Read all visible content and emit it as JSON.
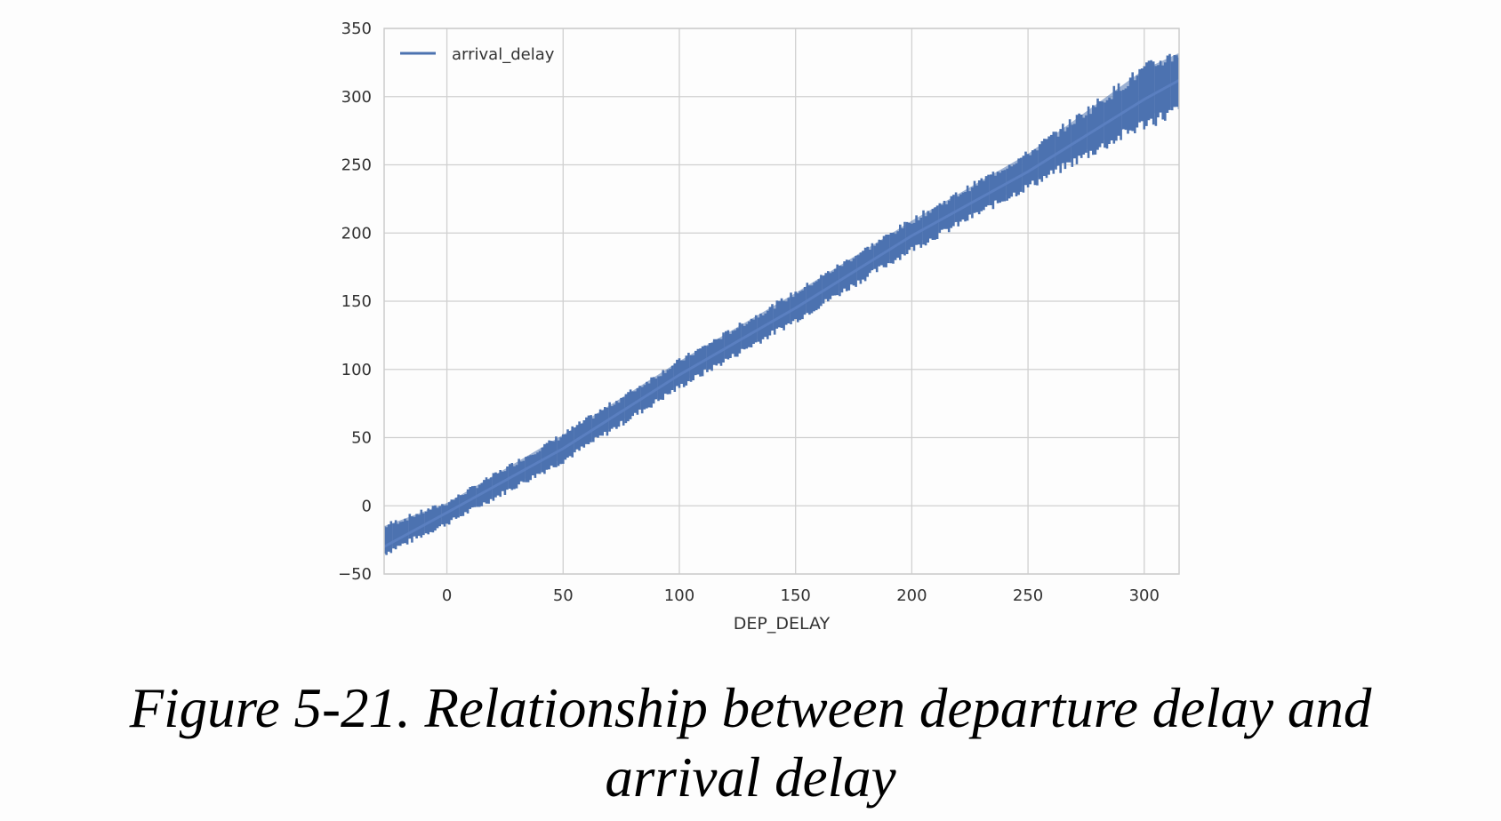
{
  "chart_data": {
    "type": "line",
    "xlabel": "DEP_DELAY",
    "ylabel": "",
    "xlim": [
      -27,
      315
    ],
    "ylim": [
      -50,
      350
    ],
    "xticks": [
      0,
      50,
      100,
      150,
      200,
      250,
      300
    ],
    "yticks": [
      -50,
      0,
      50,
      100,
      150,
      200,
      250,
      300,
      350
    ],
    "xtick_labels": [
      "0",
      "50",
      "100",
      "150",
      "200",
      "250",
      "300"
    ],
    "ytick_labels": [
      "−50",
      "0",
      "50",
      "100",
      "150",
      "200",
      "250",
      "300",
      "350"
    ],
    "grid": true,
    "legend_position": "top-left",
    "series": [
      {
        "name": "arrival_delay",
        "x": [
          -27,
          0,
          50,
          100,
          150,
          200,
          250,
          300,
          315
        ],
        "values": [
          -30,
          -5,
          42,
          96,
          145,
          198,
          245,
          298,
          312
        ],
        "band_low": [
          -35,
          -13,
          33,
          87,
          136,
          188,
          234,
          280,
          290
        ],
        "band_high": [
          -15,
          2,
          52,
          106,
          156,
          209,
          258,
          320,
          332
        ]
      }
    ],
    "color": "#4c72b0"
  },
  "caption": {
    "line1": "Figure 5-21. Relationship between departure delay and",
    "line2": "arrival delay"
  }
}
